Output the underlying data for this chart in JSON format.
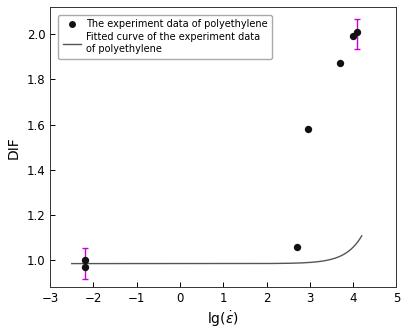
{
  "scatter_x": [
    -2.2,
    -2.2,
    2.7,
    2.95,
    3.7,
    4.0,
    4.1
  ],
  "scatter_y": [
    1.0,
    0.972,
    1.06,
    1.58,
    1.87,
    1.99,
    2.01
  ],
  "error_bar_x": [
    -2.2,
    4.1
  ],
  "error_bar_y": [
    0.986,
    2.0
  ],
  "error_bar_yerr": [
    0.07,
    0.065
  ],
  "scatter_color": "#111111",
  "error_color": "#cc00cc",
  "curve_color": "#555555",
  "xlabel": "lg($\\dot{\\varepsilon}$)",
  "ylabel": "DIF",
  "xlim": [
    -3,
    5
  ],
  "ylim": [
    0.88,
    2.12
  ],
  "xticks": [
    -3,
    -2,
    -1,
    0,
    1,
    2,
    3,
    4,
    5
  ],
  "yticks": [
    1.0,
    1.2,
    1.4,
    1.6,
    1.8,
    2.0
  ],
  "legend_label1": "The experiment data of polyethylene",
  "legend_label2": "Fitted curve of the experiment data\nof polyethylene",
  "background_color": "#ffffff",
  "curve_x_start": -2.5,
  "curve_x_end": 4.2,
  "fit_a": 0.985,
  "fit_b": 1.8e-06,
  "fit_c": 2.65
}
